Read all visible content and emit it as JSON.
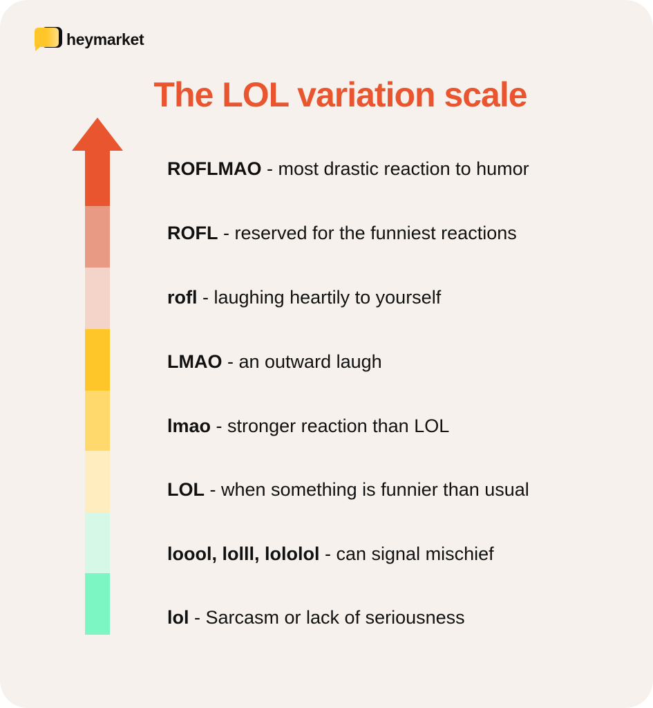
{
  "brand": {
    "name": "heymarket",
    "logo_colors": [
      "#ffc629",
      "#111111"
    ]
  },
  "title": "The LOL variation scale",
  "colors": {
    "background": "#f6f1ec",
    "title": "#e8552e"
  },
  "scale": [
    {
      "term": "ROFLMAO",
      "description": "- most drastic reaction to humor",
      "color": "#e8552e"
    },
    {
      "term": "ROFL",
      "description": "- reserved for the funniest reactions",
      "color": "#e89a84"
    },
    {
      "term": "rofl",
      "description": "- laughing heartily to yourself",
      "color": "#f4d3c8"
    },
    {
      "term": "LMAO",
      "description": "- an outward laugh",
      "color": "#ffc629"
    },
    {
      "term": "lmao",
      "description": "- stronger reaction than LOL",
      "color": "#ffd96b"
    },
    {
      "term": "LOL",
      "description": "- when something is funnier than usual",
      "color": "#ffedbf"
    },
    {
      "term": "loool, lolll, lololol",
      "description": "- can signal mischief",
      "color": "#d6f8e6"
    },
    {
      "term": "lol",
      "description": "- Sarcasm or lack of seriousness",
      "color": "#7cf7c4"
    }
  ]
}
